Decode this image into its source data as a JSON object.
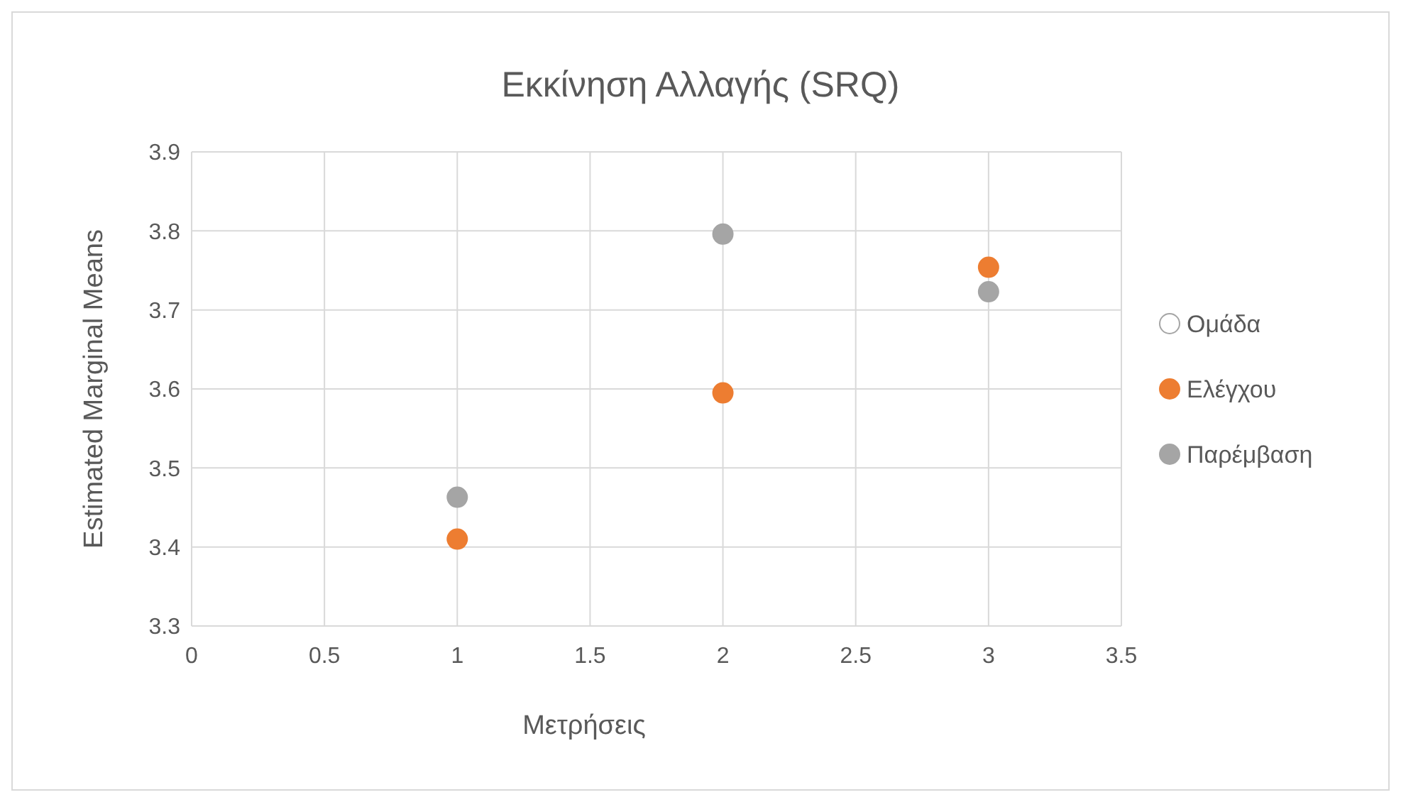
{
  "chart_data": {
    "type": "scatter",
    "title": "Εκκίνηση Αλλαγής (SRQ)",
    "xlabel": "Μετρήσεις",
    "ylabel": "Estimated Marginal Means",
    "x": [
      1,
      2,
      3
    ],
    "series": [
      {
        "name": "Ομάδα",
        "color": "#ffffff",
        "values": [
          null,
          null,
          null
        ]
      },
      {
        "name": "Ελέγχου",
        "color": "#ed7d31",
        "values": [
          3.41,
          3.595,
          3.754
        ]
      },
      {
        "name": "Παρέμβαση",
        "color": "#a5a5a5",
        "values": [
          3.463,
          3.796,
          3.723
        ]
      }
    ],
    "xlim": [
      0,
      3.5
    ],
    "xticks": [
      0,
      0.5,
      1,
      1.5,
      2,
      2.5,
      3,
      3.5
    ],
    "ylim": [
      3.3,
      3.9
    ],
    "yticks": [
      3.3,
      3.4,
      3.5,
      3.6,
      3.7,
      3.8,
      3.9
    ],
    "grid": true,
    "legend": "right",
    "marker": "circle"
  }
}
